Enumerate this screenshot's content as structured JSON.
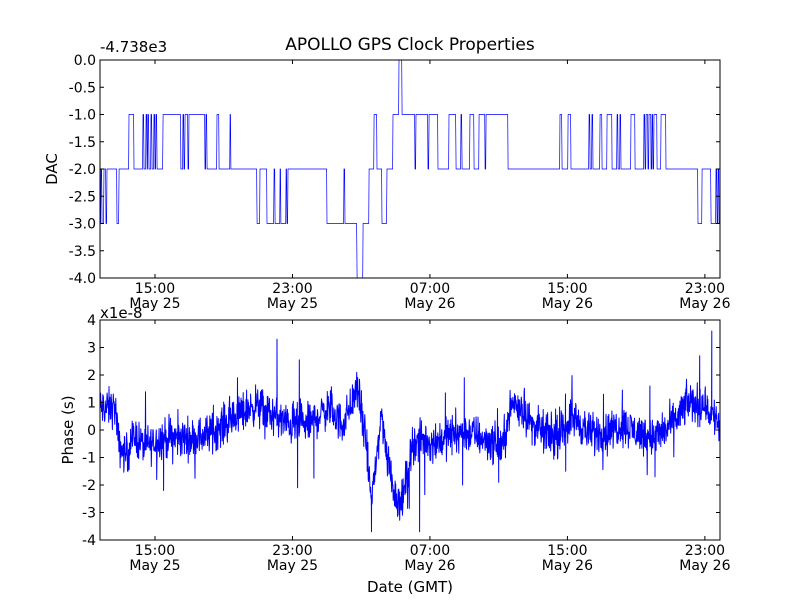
{
  "chart_data": [
    {
      "type": "line",
      "title": "APOLLO GPS Clock Properties",
      "xlabel": "",
      "ylabel": "DAC",
      "offset_label": "-4.738e3",
      "x_units": "hours since May 25 00:00 GMT",
      "xlim": [
        11.8,
        47.88
      ],
      "ylim": [
        -4.0,
        0.0
      ],
      "yticks": [
        0.0,
        -0.5,
        -1.0,
        -1.5,
        -2.0,
        -2.5,
        -3.0,
        -3.5,
        -4.0
      ],
      "ytick_labels": [
        "0.0",
        "-0.5",
        "-1.0",
        "-1.5",
        "-2.0",
        "-2.5",
        "-3.0",
        "-3.5",
        "-4.0"
      ],
      "xticks": [
        15,
        23,
        31,
        39,
        47
      ],
      "xtick_labels": [
        [
          "15:00",
          "May 25"
        ],
        [
          "23:00",
          "May 25"
        ],
        [
          "07:00",
          "May 26"
        ],
        [
          "15:00",
          "May 26"
        ],
        [
          "23:00",
          "May 26"
        ]
      ],
      "line_color": "#0000ff",
      "series": [
        {
          "name": "DAC",
          "style": "step",
          "points": [
            [
              11.8,
              -3
            ],
            [
              11.86,
              -2
            ],
            [
              11.92,
              -3
            ],
            [
              12.03,
              -2
            ],
            [
              12.15,
              -3
            ],
            [
              12.21,
              -2
            ],
            [
              12.79,
              -3
            ],
            [
              12.91,
              -2
            ],
            [
              13.49,
              -1
            ],
            [
              13.78,
              -2
            ],
            [
              14.3,
              -1
            ],
            [
              14.36,
              -2
            ],
            [
              14.48,
              -1
            ],
            [
              14.54,
              -2
            ],
            [
              14.59,
              -1
            ],
            [
              14.65,
              -2
            ],
            [
              14.77,
              -1
            ],
            [
              14.83,
              -2
            ],
            [
              14.94,
              -1
            ],
            [
              15.0,
              -2
            ],
            [
              15.06,
              -1
            ],
            [
              15.12,
              -2
            ],
            [
              15.47,
              -1
            ],
            [
              16.51,
              -2
            ],
            [
              16.63,
              -1
            ],
            [
              16.69,
              -2
            ],
            [
              16.75,
              -1
            ],
            [
              16.92,
              -2
            ],
            [
              16.98,
              -1
            ],
            [
              17.04,
              -1
            ],
            [
              17.91,
              -2
            ],
            [
              17.97,
              -1
            ],
            [
              18.03,
              -2
            ],
            [
              18.61,
              -1
            ],
            [
              18.73,
              -2
            ],
            [
              19.37,
              -1
            ],
            [
              19.42,
              -2
            ],
            [
              20.94,
              -3
            ],
            [
              21.11,
              -2
            ],
            [
              21.52,
              -3
            ],
            [
              21.93,
              -2
            ],
            [
              21.99,
              -3
            ],
            [
              22.28,
              -2
            ],
            [
              22.33,
              -3
            ],
            [
              22.63,
              -2
            ],
            [
              22.68,
              -3
            ],
            [
              22.74,
              -2
            ],
            [
              25.01,
              -3
            ],
            [
              26.0,
              -2
            ],
            [
              26.06,
              -3
            ],
            [
              26.76,
              -4
            ],
            [
              27.11,
              -3
            ],
            [
              27.46,
              -2
            ],
            [
              27.75,
              -1
            ],
            [
              27.92,
              -2
            ],
            [
              28.21,
              -3
            ],
            [
              28.5,
              -2
            ],
            [
              28.85,
              -1
            ],
            [
              29.2,
              0
            ],
            [
              29.38,
              -1
            ],
            [
              30.13,
              -2
            ],
            [
              30.19,
              -1
            ],
            [
              30.89,
              -2
            ],
            [
              30.95,
              -1
            ],
            [
              31.47,
              -2
            ],
            [
              32.11,
              -1
            ],
            [
              32.52,
              -2
            ],
            [
              32.81,
              -1
            ],
            [
              32.87,
              -2
            ],
            [
              33.33,
              -1
            ],
            [
              33.57,
              -2
            ],
            [
              33.86,
              -1
            ],
            [
              34.21,
              -2
            ],
            [
              34.27,
              -1
            ],
            [
              35.55,
              -2
            ],
            [
              38.57,
              -1
            ],
            [
              38.69,
              -2
            ],
            [
              39.04,
              -1
            ],
            [
              39.21,
              -2
            ],
            [
              40.26,
              -1
            ],
            [
              40.32,
              -2
            ],
            [
              40.43,
              -1
            ],
            [
              40.49,
              -2
            ],
            [
              40.9,
              -1
            ],
            [
              41.02,
              -2
            ],
            [
              41.31,
              -1
            ],
            [
              41.6,
              -2
            ],
            [
              41.89,
              -1
            ],
            [
              41.95,
              -2
            ],
            [
              42.06,
              -1
            ],
            [
              42.12,
              -2
            ],
            [
              42.7,
              -1
            ],
            [
              42.94,
              -2
            ],
            [
              43.46,
              -1
            ],
            [
              43.52,
              -2
            ],
            [
              43.58,
              -1
            ],
            [
              43.69,
              -2
            ],
            [
              43.75,
              -1
            ],
            [
              43.87,
              -2
            ],
            [
              43.93,
              -1
            ],
            [
              43.98,
              -2
            ],
            [
              44.04,
              -1
            ],
            [
              44.22,
              -2
            ],
            [
              44.45,
              -1
            ],
            [
              44.74,
              -2
            ],
            [
              46.6,
              -3
            ],
            [
              46.84,
              -2
            ],
            [
              47.36,
              -3
            ],
            [
              47.65,
              -2
            ],
            [
              47.71,
              -3
            ],
            [
              47.77,
              -2
            ],
            [
              47.83,
              -3
            ],
            [
              47.88,
              -3
            ]
          ]
        }
      ]
    },
    {
      "type": "line",
      "title": "",
      "xlabel": "Date (GMT)",
      "ylabel": "Phase (s)",
      "offset_label": "x1e-8",
      "x_units": "hours since May 25 00:00 GMT",
      "xlim": [
        11.8,
        47.88
      ],
      "ylim": [
        -4,
        4
      ],
      "yticks": [
        4,
        3,
        2,
        1,
        0,
        -1,
        -2,
        -3,
        -4
      ],
      "ytick_labels": [
        "4",
        "3",
        "2",
        "1",
        "0",
        "-1",
        "-2",
        "-3",
        "-4"
      ],
      "xticks": [
        15,
        23,
        31,
        39,
        47
      ],
      "xtick_labels": [
        [
          "15:00",
          "May 25"
        ],
        [
          "23:00",
          "May 25"
        ],
        [
          "07:00",
          "May 26"
        ],
        [
          "15:00",
          "May 26"
        ],
        [
          "23:00",
          "May 26"
        ]
      ],
      "line_color": "#0000ff",
      "series": [
        {
          "name": "Phase",
          "noise_amplitude": 0.35,
          "trend": [
            [
              11.8,
              0.8
            ],
            [
              12.7,
              0.8
            ],
            [
              12.9,
              -0.6
            ],
            [
              13.3,
              -0.9
            ],
            [
              13.8,
              -0.2
            ],
            [
              14.4,
              -0.6
            ],
            [
              15.4,
              -0.3
            ],
            [
              16.3,
              -0.3
            ],
            [
              17.3,
              -0.3
            ],
            [
              18.3,
              -0.1
            ],
            [
              19.7,
              0.5
            ],
            [
              20.8,
              0.9
            ],
            [
              21.8,
              0.55
            ],
            [
              22.75,
              0.2
            ],
            [
              23.9,
              0.2
            ],
            [
              25.1,
              0.8
            ],
            [
              25.9,
              0.2
            ],
            [
              26.8,
              1.5
            ],
            [
              27.2,
              -0.1
            ],
            [
              27.6,
              -2.5
            ],
            [
              28.2,
              0.6
            ],
            [
              28.5,
              -1.0
            ],
            [
              29.0,
              -2.4
            ],
            [
              29.4,
              -2.6
            ],
            [
              30.0,
              -0.45
            ],
            [
              30.7,
              -0.4
            ],
            [
              31.5,
              -0.4
            ],
            [
              32.5,
              -0.1
            ],
            [
              33.4,
              -0.1
            ],
            [
              34.4,
              -0.4
            ],
            [
              35.2,
              -0.6
            ],
            [
              35.8,
              1.0
            ],
            [
              36.4,
              0.8
            ],
            [
              36.9,
              0.2
            ],
            [
              37.7,
              -0.1
            ],
            [
              38.4,
              -0.3
            ],
            [
              39.3,
              0.5
            ],
            [
              40.2,
              -0.1
            ],
            [
              41.2,
              -0.1
            ],
            [
              42.2,
              0.2
            ],
            [
              43.1,
              -0.1
            ],
            [
              44.1,
              -0.25
            ],
            [
              45.1,
              0.2
            ],
            [
              46.0,
              1.0
            ],
            [
              47.0,
              0.9
            ],
            [
              47.88,
              0.2
            ]
          ],
          "spikes": [
            [
              13.4,
              -1.5
            ],
            [
              15.1,
              -1.8
            ],
            [
              15.5,
              -2.2
            ],
            [
              18.4,
              0.9
            ],
            [
              19.8,
              1.9
            ],
            [
              22.1,
              3.3
            ],
            [
              23.3,
              -2.1
            ],
            [
              23.4,
              2.55
            ],
            [
              24.25,
              -1.75
            ],
            [
              27.6,
              -3.7
            ],
            [
              29.7,
              -2.85
            ],
            [
              29.8,
              -2.85
            ],
            [
              30.4,
              -3.7
            ],
            [
              30.7,
              -2.35
            ],
            [
              31.9,
              1.35
            ],
            [
              32.9,
              -2.0
            ],
            [
              33.0,
              1.9
            ],
            [
              35.0,
              -1.9
            ],
            [
              38.9,
              -1.5
            ],
            [
              41.1,
              1.3
            ],
            [
              42.2,
              1.45
            ],
            [
              43.8,
              1.6
            ],
            [
              44.1,
              -1.7
            ],
            [
              46.7,
              2.7
            ],
            [
              47.4,
              3.6
            ]
          ]
        }
      ]
    }
  ]
}
